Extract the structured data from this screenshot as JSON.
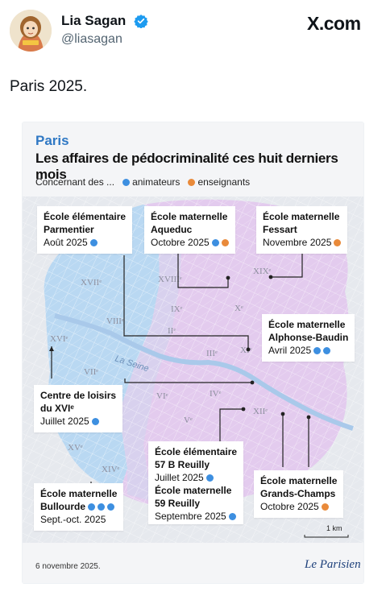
{
  "post": {
    "author_name": "Lia Sagan",
    "handle": "@liasagan",
    "site_logo": "X.com",
    "text": "Paris 2025.",
    "avatar_icon": "avatar-illustration",
    "verified_icon": "verified-badge-icon"
  },
  "card": {
    "city": "Paris",
    "title": "Les affaires de pédocriminalité ces huit derniers mois",
    "legend": {
      "prefix": "Concernant des ...",
      "animateurs": "animateurs",
      "enseignants": "enseignants"
    },
    "colors": {
      "animateurs": "#3d8fe0",
      "enseignants": "#e98a3a",
      "title_accent": "#2f78c4"
    },
    "arrondissements": [
      "XVIIᵉ",
      "XVIIIᵉ",
      "XIXᵉ",
      "VIIIᵉ",
      "IXᵉ",
      "Xᵉ",
      "IIᵉ",
      "IIIᵉ",
      "XIᵉ",
      "XVIᵉ",
      "VIIᵉ",
      "VIᵉ",
      "IVᵉ",
      "Vᵉ",
      "XIIᵉ",
      "XVᵉ",
      "XIVᵉ"
    ],
    "river": "La Seine",
    "annotations": [
      {
        "name": "École élémentaire Parmentier",
        "line1": "École élémentaire",
        "line2": "Parmentier",
        "date": "Août 2025"
      },
      {
        "name": "École maternelle Aqueduc",
        "line1": "École maternelle",
        "line2": "Aqueduc",
        "date": "Octobre 2025"
      },
      {
        "name": "École maternelle Fessart",
        "line1": "École maternelle",
        "line2": "Fessart",
        "date": "Novembre 2025"
      },
      {
        "name": "École maternelle Alphonse-Baudin",
        "line1": "École maternelle",
        "line2": "Alphonse-Baudin",
        "date": "Avril 2025"
      },
      {
        "name": "Centre de loisirs du XVIᵉ",
        "line1": "Centre de loisirs",
        "line2": "du XVIᵉ",
        "date": "Juillet 2025"
      },
      {
        "name": "École élémentaire 57 B Reuilly",
        "line1": "École élémentaire",
        "line2": "57 B Reuilly",
        "date": "Juillet 2025"
      },
      {
        "name": "École maternelle 59 Reuilly",
        "line1": "École maternelle",
        "line2": "59 Reuilly",
        "date": "Septembre 2025"
      },
      {
        "name": "École maternelle Bullourde",
        "line1": "École maternelle",
        "line2": "Bullourde",
        "date": "Sept.-oct. 2025"
      },
      {
        "name": "École maternelle Grands-Champs",
        "line1": "École maternelle",
        "line2": "Grands-Champs",
        "date": "Octobre 2025"
      }
    ],
    "scale_label": "1 km",
    "footer_date": "6 novembre 2025.",
    "footer_logo": "Le Parisien"
  }
}
